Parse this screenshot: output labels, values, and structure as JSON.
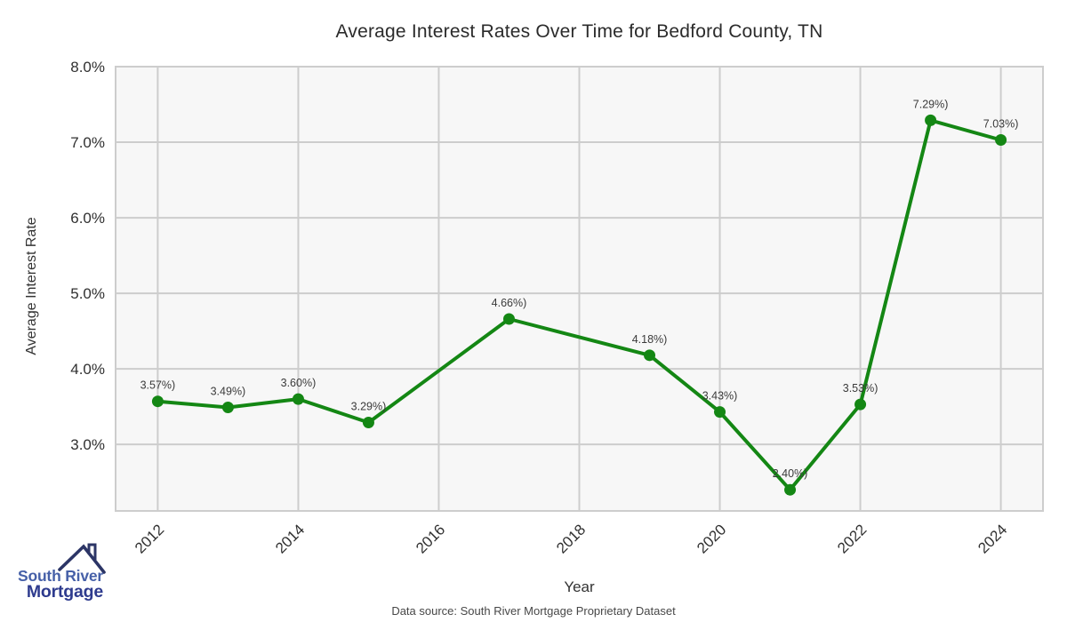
{
  "chart_data": {
    "type": "line",
    "title": "Average Interest Rates Over Time for Bedford County, TN",
    "xlabel": "Year",
    "ylabel": "Average Interest Rate",
    "x": [
      2012,
      2013,
      2014,
      2015,
      2017,
      2019,
      2020,
      2021,
      2022,
      2023,
      2024
    ],
    "series": [
      {
        "name": "Average Interest Rate",
        "values": [
          3.57,
          3.49,
          3.6,
          3.29,
          4.66,
          4.18,
          3.43,
          2.4,
          3.53,
          7.29,
          7.03
        ]
      }
    ],
    "point_labels": [
      "3.57%)",
      "3.49%)",
      "3.60%)",
      "3.29%)",
      "4.66%)",
      "4.18%)",
      "3.43%)",
      "2.40%)",
      "3.53%)",
      "7.29%)",
      "7.03%)"
    ],
    "x_ticks": [
      2012,
      2014,
      2016,
      2018,
      2020,
      2022,
      2024
    ],
    "x_tick_labels": [
      "2012",
      "2014",
      "2016",
      "2018",
      "2020",
      "2022",
      "2024"
    ],
    "y_ticks": [
      8.0,
      7.0,
      6.0,
      5.0,
      4.0,
      3.0
    ],
    "y_tick_labels": [
      "8.0%",
      "7.0%",
      "6.0%",
      "5.0%",
      "4.0%",
      "3.0%"
    ],
    "xlim": [
      2011.4,
      2024.6
    ],
    "ylim": [
      2.12,
      8.0
    ],
    "grid": true,
    "legend": "none",
    "colors": {
      "line": "#148714",
      "marker": "#148714",
      "grid": "#cdcdcd",
      "plot_bg": "#f7f7f7",
      "tick_text": "#303030",
      "point_label_text": "#3a3a3a"
    }
  },
  "footer": {
    "source": "Data source: South River Mortgage Proprietary Dataset"
  },
  "logo": {
    "line1": "South River",
    "line2": "Mortgage",
    "color_primary": "#4660a8",
    "color_secondary": "#2e3b8e",
    "roof_color": "#2c3566"
  }
}
